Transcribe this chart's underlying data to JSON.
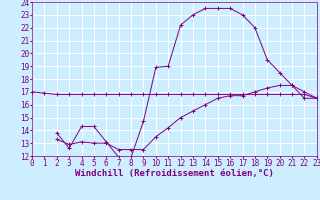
{
  "xlabel": "Windchill (Refroidissement éolien,°C)",
  "background_color": "#cceeff",
  "line_color": "#800080",
  "grid_color": "#ffffff",
  "xlim": [
    0,
    23
  ],
  "ylim": [
    12,
    24
  ],
  "xticks": [
    0,
    1,
    2,
    3,
    4,
    5,
    6,
    7,
    8,
    9,
    10,
    11,
    12,
    13,
    14,
    15,
    16,
    17,
    18,
    19,
    20,
    21,
    22,
    23
  ],
  "yticks": [
    12,
    13,
    14,
    15,
    16,
    17,
    18,
    19,
    20,
    21,
    22,
    23,
    24
  ],
  "curve1_x": [
    0,
    1,
    2,
    3,
    4,
    5,
    6,
    7,
    8,
    9,
    10,
    11,
    12,
    13,
    14,
    15,
    16,
    17,
    18,
    19,
    20,
    21,
    22,
    23
  ],
  "curve1_y": [
    17.0,
    16.9,
    16.8,
    16.8,
    16.8,
    16.8,
    16.8,
    16.8,
    16.8,
    16.8,
    16.8,
    16.8,
    16.8,
    16.8,
    16.8,
    16.8,
    16.8,
    16.8,
    16.8,
    16.8,
    16.8,
    16.8,
    16.8,
    16.5
  ],
  "curve2_x": [
    2,
    3,
    4,
    5,
    6,
    7,
    8,
    9,
    10,
    11,
    12,
    13,
    14,
    15,
    16,
    17,
    18,
    19,
    20,
    21,
    22,
    23
  ],
  "curve2_y": [
    13.8,
    12.6,
    14.3,
    14.3,
    13.1,
    11.9,
    11.9,
    14.7,
    18.9,
    19.0,
    22.2,
    23.0,
    23.5,
    23.5,
    23.5,
    23.0,
    22.0,
    19.5,
    18.5,
    17.5,
    16.5,
    16.5
  ],
  "curve3_x": [
    2,
    3,
    4,
    5,
    6,
    7,
    8,
    9,
    10,
    11,
    12,
    13,
    14,
    15,
    16,
    17,
    18,
    19,
    20,
    21,
    22,
    23
  ],
  "curve3_y": [
    13.3,
    12.9,
    13.1,
    13.0,
    13.0,
    12.5,
    12.5,
    12.5,
    13.5,
    14.2,
    15.0,
    15.5,
    16.0,
    16.5,
    16.7,
    16.7,
    17.0,
    17.3,
    17.5,
    17.5,
    17.0,
    16.5
  ],
  "title_fontsize": 6,
  "xlabel_fontsize": 6.5,
  "tick_fontsize": 5.5
}
